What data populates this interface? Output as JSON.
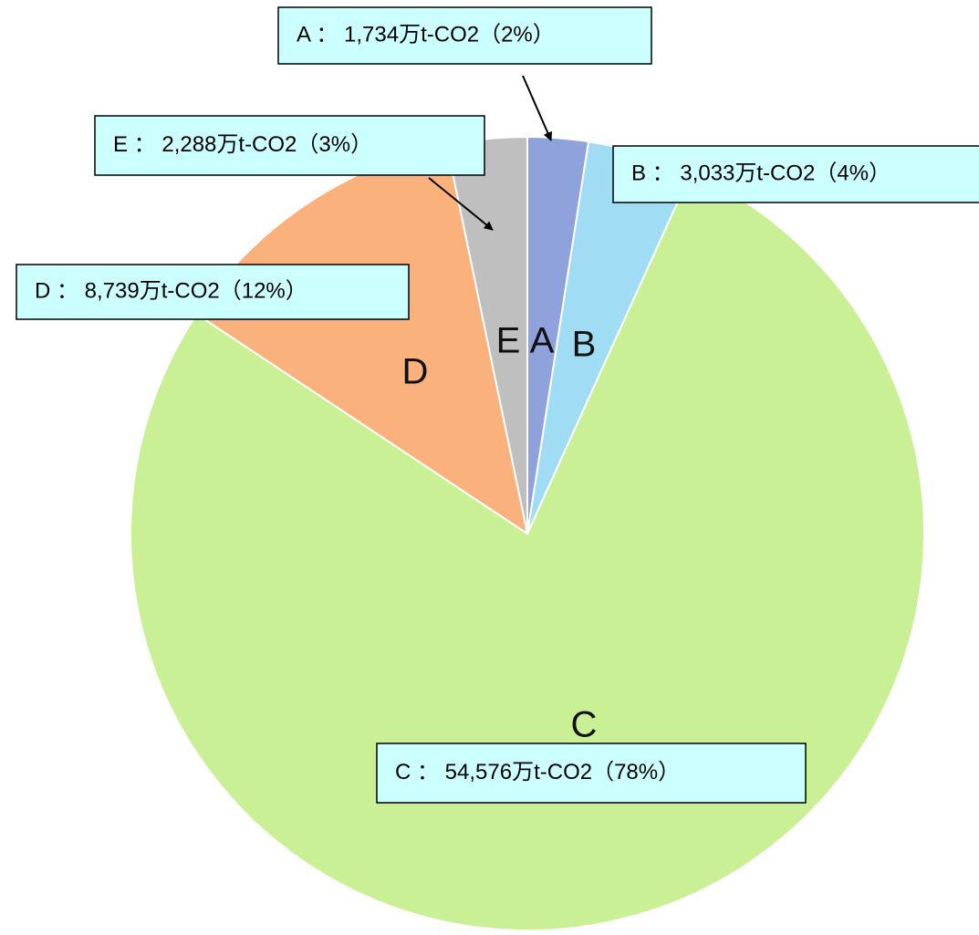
{
  "chart_data": {
    "type": "pie",
    "categories": [
      "A",
      "B",
      "C",
      "D",
      "E"
    ],
    "values": [
      1734,
      3033,
      54576,
      8739,
      2288
    ],
    "value_labels": [
      "A ： 1,734万t-CO2（2%）",
      "B ： 3,033万t-CO2（4%）",
      "C ： 54,576万t-CO2（78%）",
      "D ： 8,739万t-CO2（12%）",
      "E ： 2,288万t-CO2（3%）"
    ],
    "colors": [
      "#8fa2dc",
      "#a0dcf4",
      "#c9f095",
      "#fbb17c",
      "#bfbfbf"
    ]
  }
}
